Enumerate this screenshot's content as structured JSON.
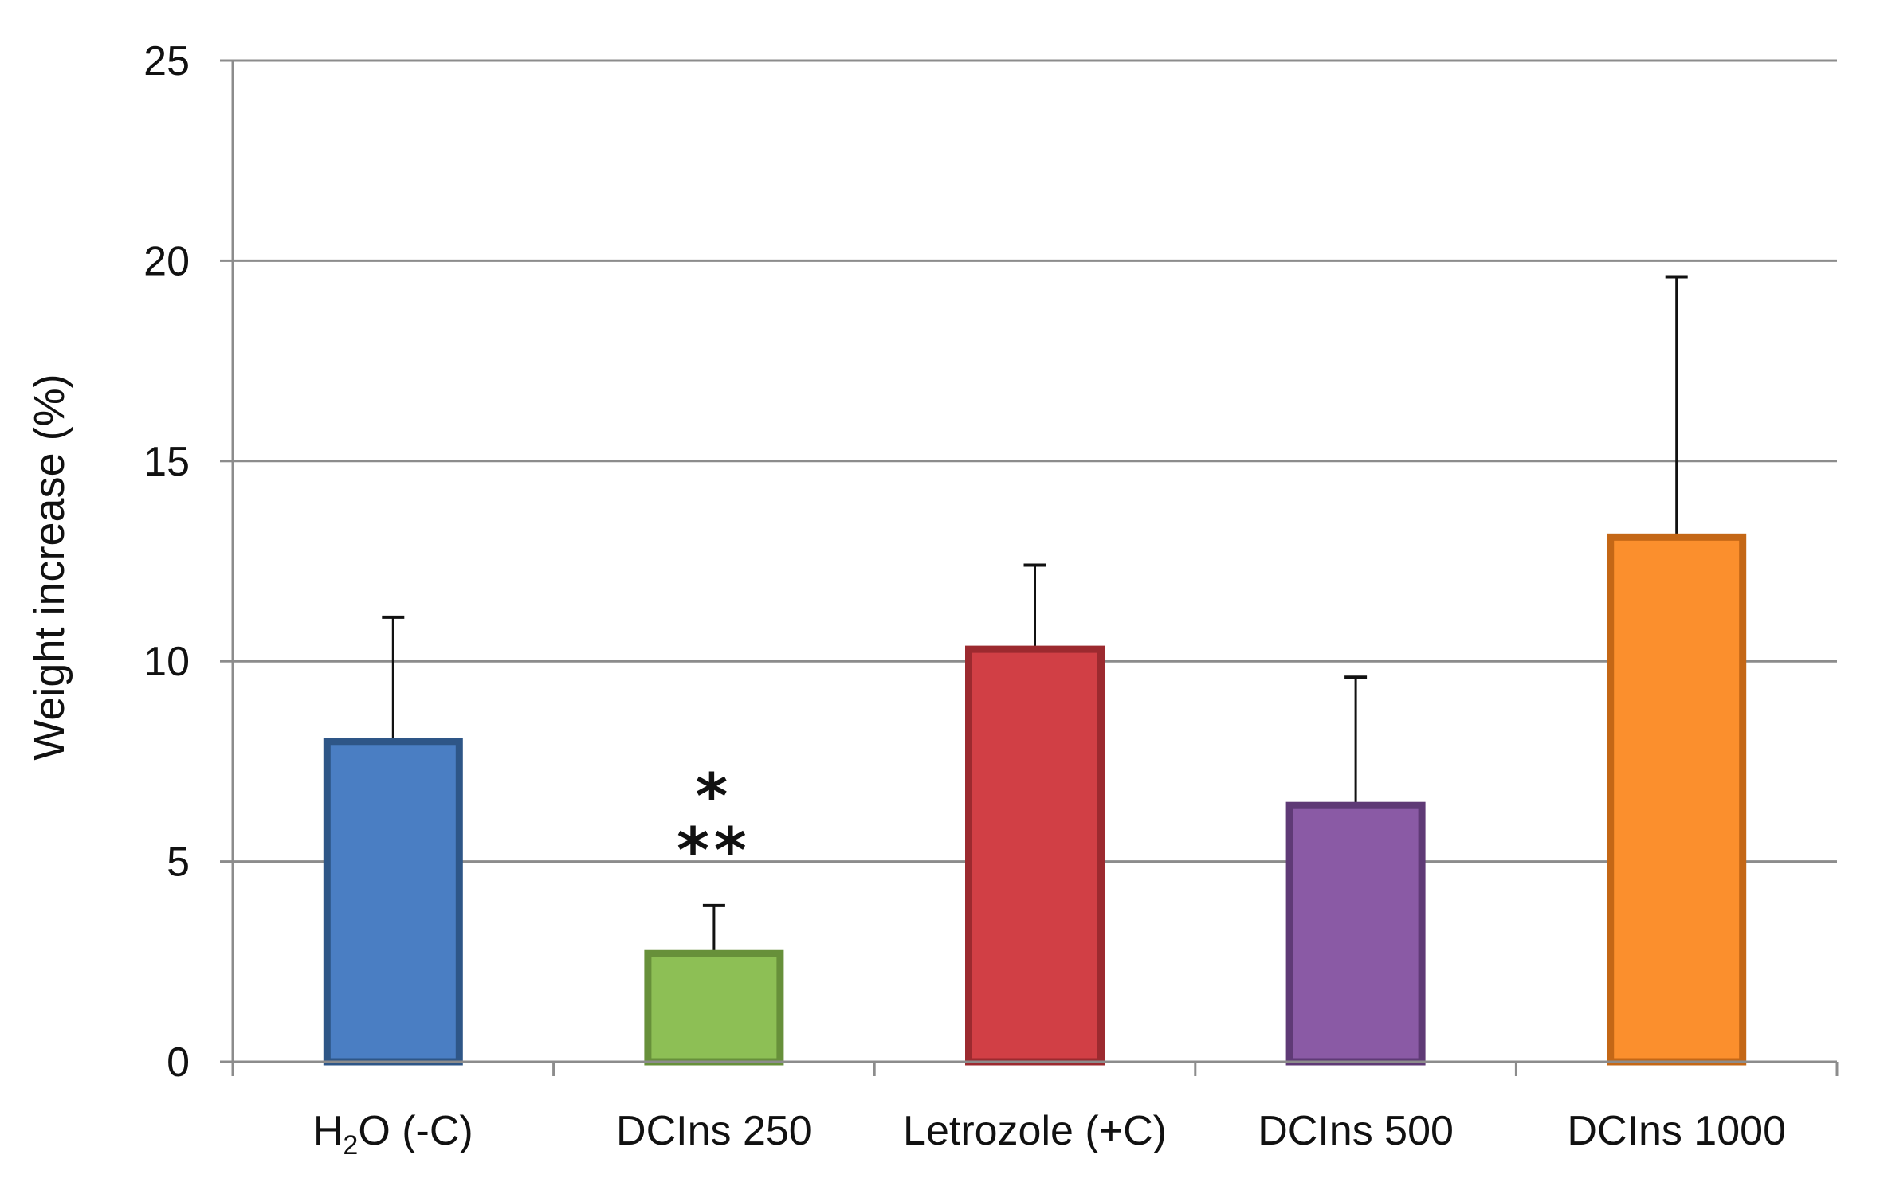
{
  "chart_data": {
    "type": "bar",
    "title": "",
    "xlabel": "",
    "ylabel": "Weight increase (%)",
    "ylim": [
      0,
      25
    ],
    "yticks": [
      0,
      5,
      10,
      15,
      20,
      25
    ],
    "grid": true,
    "legend": "none",
    "categories": [
      {
        "label": "H2O (-C)",
        "main": "H",
        "sub": "2",
        "rest": "O (-C)"
      },
      {
        "label": "DCIns 250",
        "main": "DCIns 250",
        "sub": "",
        "rest": ""
      },
      {
        "label": "Letrozole (+C)",
        "main": "Letrozole (+C)",
        "sub": "",
        "rest": ""
      },
      {
        "label": "DCIns 500",
        "main": "DCIns 500",
        "sub": "",
        "rest": ""
      },
      {
        "label": "DCIns 1000",
        "main": "DCIns 1000",
        "sub": "",
        "rest": ""
      }
    ],
    "values": [
      8.0,
      2.7,
      10.3,
      6.4,
      13.1
    ],
    "error_upper": [
      11.1,
      3.9,
      12.4,
      9.6,
      19.6
    ],
    "colors": [
      {
        "fill": "#4a7ec3",
        "stroke": "#2e5687"
      },
      {
        "fill": "#8dbf55",
        "stroke": "#67903a"
      },
      {
        "fill": "#d13f45",
        "stroke": "#9c2a2f"
      },
      {
        "fill": "#8a5aa5",
        "stroke": "#5f3a76"
      },
      {
        "fill": "#fb8f2d",
        "stroke": "#c46716"
      }
    ],
    "annotations": [
      {
        "category_index": 1,
        "lines": [
          "*",
          "**"
        ]
      }
    ]
  }
}
